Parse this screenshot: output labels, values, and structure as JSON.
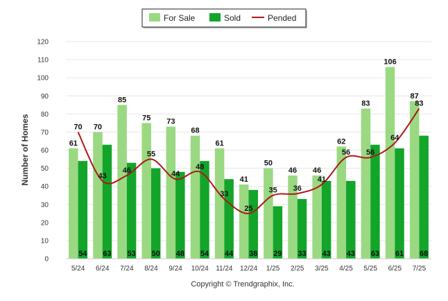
{
  "chart_data": {
    "type": "bar",
    "title": "",
    "xlabel": "",
    "ylabel": "Number of Homes",
    "ylim": [
      0,
      120
    ],
    "yticks": [
      0,
      10,
      20,
      30,
      40,
      50,
      60,
      70,
      80,
      90,
      100,
      110,
      120
    ],
    "grid": true,
    "legend_position": "top-center",
    "categories": [
      "5/24",
      "6/24",
      "7/24",
      "8/24",
      "9/24",
      "10/24",
      "11/24",
      "12/24",
      "1/25",
      "2/25",
      "3/25",
      "4/25",
      "5/25",
      "6/25",
      "7/25"
    ],
    "series": [
      {
        "name": "For Sale",
        "type": "bar",
        "color": "#9ad982",
        "values": [
          61,
          70,
          85,
          75,
          73,
          68,
          61,
          41,
          50,
          46,
          46,
          62,
          83,
          106,
          87
        ]
      },
      {
        "name": "Sold",
        "type": "bar",
        "color": "#13a52a",
        "values": [
          54,
          63,
          53,
          50,
          48,
          54,
          44,
          38,
          29,
          33,
          43,
          43,
          63,
          61,
          68
        ]
      },
      {
        "name": "Pended",
        "type": "line",
        "color": "#b01717",
        "values": [
          70,
          43,
          46,
          55,
          44,
          48,
          33,
          25,
          35,
          36,
          41,
          56,
          56,
          64,
          83
        ]
      }
    ]
  },
  "footer": {
    "copyright": "Copyright © Trendgraphix, Inc."
  }
}
